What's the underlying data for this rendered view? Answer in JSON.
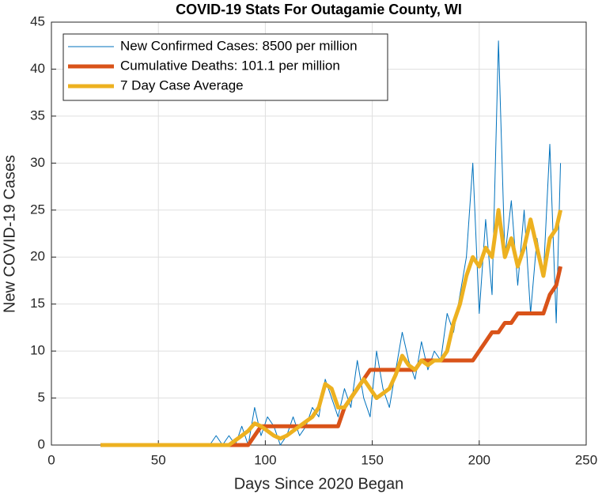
{
  "chart_data": {
    "type": "line",
    "title": "COVID-19 Stats For Outagamie County, WI",
    "x_label": "Days Since 2020 Began",
    "y_label": "New COVID-19 Cases",
    "x": [
      23,
      26,
      29,
      32,
      35,
      38,
      41,
      44,
      47,
      50,
      53,
      56,
      59,
      62,
      65,
      68,
      71,
      74,
      77,
      80,
      83,
      86,
      89,
      92,
      95,
      98,
      101,
      104,
      107,
      110,
      113,
      116,
      119,
      122,
      125,
      128,
      131,
      134,
      137,
      140,
      143,
      146,
      149,
      152,
      155,
      158,
      161,
      164,
      167,
      170,
      173,
      176,
      179,
      182,
      185,
      188,
      191,
      194,
      197,
      200,
      203,
      206,
      209,
      212,
      215,
      218,
      221,
      224,
      227,
      230,
      233,
      236,
      238
    ],
    "series": [
      {
        "name": "New Confirmed Cases: 8500 per million",
        "color": "#0072bd",
        "width": 1,
        "values": [
          0,
          0,
          0,
          0,
          0,
          0,
          0,
          0,
          0,
          0,
          0,
          0,
          0,
          0,
          0,
          0,
          0,
          0,
          1,
          0,
          1,
          0,
          2,
          0,
          4,
          1,
          3,
          2,
          0,
          1,
          3,
          1,
          2,
          4,
          3,
          7,
          5,
          3,
          6,
          4,
          9,
          5,
          3,
          10,
          6,
          4,
          8,
          12,
          9,
          7,
          11,
          8,
          10,
          9,
          14,
          12,
          16,
          20,
          30,
          14,
          24,
          16,
          43,
          20,
          26,
          17,
          25,
          14,
          22,
          18,
          32,
          13,
          30
        ]
      },
      {
        "name": "Cumulative Deaths: 101.1 per million",
        "color": "#d95319",
        "width": 5,
        "values": [
          0,
          0,
          0,
          0,
          0,
          0,
          0,
          0,
          0,
          0,
          0,
          0,
          0,
          0,
          0,
          0,
          0,
          0,
          0,
          0,
          0,
          0,
          0,
          0,
          1,
          2,
          2,
          2,
          2,
          2,
          2,
          2,
          2,
          2,
          2,
          2,
          2,
          2,
          4,
          5,
          6,
          7,
          8,
          8,
          8,
          8,
          8,
          8,
          8,
          8,
          9,
          9,
          9,
          9,
          9,
          9,
          9,
          9,
          9,
          10,
          11,
          12,
          12,
          13,
          13,
          14,
          14,
          14,
          14,
          14,
          16,
          17,
          19
        ]
      },
      {
        "name": "7 Day Case Average",
        "color": "#edb120",
        "width": 5,
        "values": [
          0,
          0,
          0,
          0,
          0,
          0,
          0,
          0,
          0,
          0,
          0,
          0,
          0,
          0,
          0,
          0,
          0,
          0,
          0,
          0,
          0,
          0.5,
          1,
          1.5,
          2.3,
          2,
          1.5,
          1,
          0.7,
          1,
          1.5,
          2,
          2.5,
          3,
          4,
          6.5,
          6,
          4,
          4,
          5,
          6,
          7,
          6,
          5,
          5.5,
          6,
          7.5,
          9.5,
          8.5,
          8,
          9,
          8.5,
          9,
          9,
          10,
          13,
          15,
          18,
          20,
          19,
          21,
          20,
          25,
          20,
          22,
          19,
          21,
          24,
          21,
          18,
          22,
          23,
          25
        ]
      }
    ],
    "xlim": [
      0,
      250
    ],
    "xticks": [
      0,
      50,
      100,
      150,
      200,
      250
    ],
    "ylim": [
      0,
      45
    ],
    "yticks": [
      0,
      5,
      10,
      15,
      20,
      25,
      30,
      35,
      40,
      45
    ],
    "grid": true,
    "legend_position": "northwest"
  }
}
